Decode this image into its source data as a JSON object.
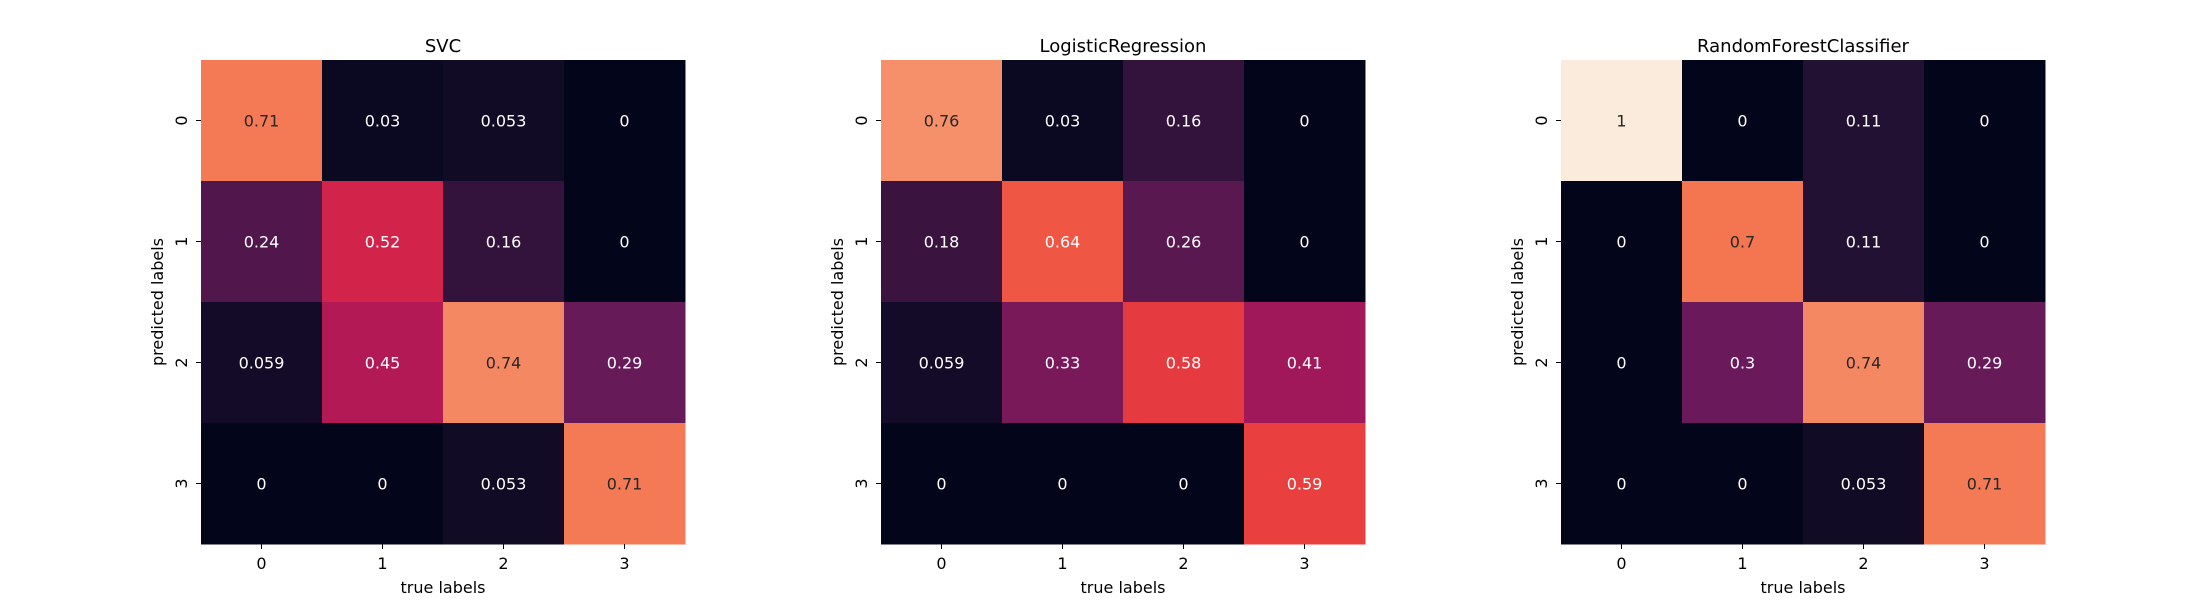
{
  "chart_data": [
    {
      "type": "heatmap",
      "title": "SVC",
      "xlabel": "true labels",
      "ylabel": "predicted labels",
      "x_categories": [
        "0",
        "1",
        "2",
        "3"
      ],
      "y_categories": [
        "0",
        "1",
        "2",
        "3"
      ],
      "colormap": "rocket",
      "value_range": [
        0,
        1
      ],
      "colorbar": false,
      "values": [
        [
          0.71,
          0.03,
          0.053,
          0
        ],
        [
          0.24,
          0.52,
          0.16,
          0
        ],
        [
          0.059,
          0.45,
          0.74,
          0.29
        ],
        [
          0,
          0,
          0.053,
          0.71
        ]
      ],
      "cell_labels": [
        [
          "0.71",
          "0.03",
          "0.053",
          "0"
        ],
        [
          "0.24",
          "0.52",
          "0.16",
          "0"
        ],
        [
          "0.059",
          "0.45",
          "0.74",
          "0.29"
        ],
        [
          "0",
          "0",
          "0.053",
          "0.71"
        ]
      ]
    },
    {
      "type": "heatmap",
      "title": "LogisticRegression",
      "xlabel": "true labels",
      "ylabel": "predicted labels",
      "x_categories": [
        "0",
        "1",
        "2",
        "3"
      ],
      "y_categories": [
        "0",
        "1",
        "2",
        "3"
      ],
      "colormap": "rocket",
      "value_range": [
        0,
        1
      ],
      "colorbar": false,
      "values": [
        [
          0.76,
          0.03,
          0.16,
          0
        ],
        [
          0.18,
          0.64,
          0.26,
          0
        ],
        [
          0.059,
          0.33,
          0.58,
          0.41
        ],
        [
          0,
          0,
          0,
          0.59
        ]
      ],
      "cell_labels": [
        [
          "0.76",
          "0.03",
          "0.16",
          "0"
        ],
        [
          "0.18",
          "0.64",
          "0.26",
          "0"
        ],
        [
          "0.059",
          "0.33",
          "0.58",
          "0.41"
        ],
        [
          "0",
          "0",
          "0",
          "0.59"
        ]
      ]
    },
    {
      "type": "heatmap",
      "title": "RandomForestClassifier",
      "xlabel": "true labels",
      "ylabel": "predicted labels",
      "x_categories": [
        "0",
        "1",
        "2",
        "3"
      ],
      "y_categories": [
        "0",
        "1",
        "2",
        "3"
      ],
      "colormap": "rocket",
      "value_range": [
        0,
        1
      ],
      "colorbar": false,
      "values": [
        [
          1,
          0,
          0.11,
          0
        ],
        [
          0,
          0.7,
          0.11,
          0
        ],
        [
          0,
          0.3,
          0.74,
          0.29
        ],
        [
          0,
          0,
          0.053,
          0.71
        ]
      ],
      "cell_labels": [
        [
          "1",
          "0",
          "0.11",
          "0"
        ],
        [
          "0",
          "0.7",
          "0.11",
          "0"
        ],
        [
          "0",
          "0.3",
          "0.74",
          "0.29"
        ],
        [
          "0",
          "0",
          "0.053",
          "0.71"
        ]
      ]
    }
  ]
}
